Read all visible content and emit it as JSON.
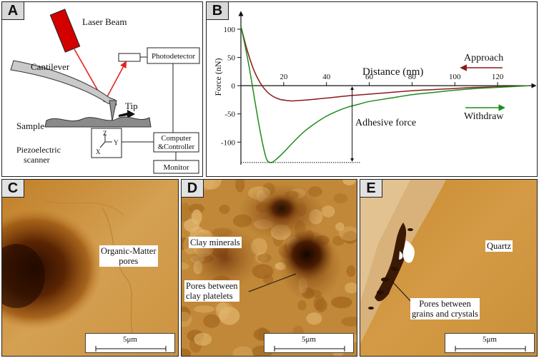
{
  "panels": {
    "a": {
      "label": "A"
    },
    "b": {
      "label": "B"
    },
    "c": {
      "label": "C"
    },
    "d": {
      "label": "D"
    },
    "e": {
      "label": "E"
    }
  },
  "schematic": {
    "laser_beam": "Laser Beam",
    "photodetector": "Photodetector",
    "cantilever": "Cantilever",
    "tip": "Tip",
    "sample": "Sample",
    "piezo_line1": "Piezoelectric",
    "piezo_line2": "scanner",
    "computer_line1": "Computer",
    "computer_line2": "&Controller",
    "monitor": "Monitor",
    "axis_z": "Z",
    "axis_y": "Y",
    "axis_x": "X",
    "colors": {
      "laser_body": "#d40000",
      "laser_ray": "#e8201e",
      "motion_arrow": "#111111"
    }
  },
  "chart_data": {
    "type": "line",
    "xlabel": "Distance (nm)",
    "ylabel": "Force (nN)",
    "xlim": [
      0,
      135
    ],
    "ylim": [
      -140,
      110
    ],
    "x_ticks": [
      20,
      40,
      60,
      80,
      100,
      120
    ],
    "y_ticks": [
      100,
      50,
      0,
      -50,
      -100
    ],
    "annotation": "Adhesive force",
    "series": [
      {
        "name": "Approach",
        "color": "#8b1a1a",
        "direction": "left",
        "x": [
          0,
          3,
          6,
          9,
          12,
          15,
          18,
          21,
          24,
          28,
          32,
          40,
          50,
          60,
          70,
          80,
          90,
          100,
          110,
          120,
          135
        ],
        "y": [
          105,
          62,
          28,
          5,
          -10,
          -19,
          -24,
          -26,
          -27,
          -26,
          -25,
          -22,
          -18,
          -15,
          -12,
          -9,
          -7,
          -5,
          -3,
          -2,
          0
        ]
      },
      {
        "name": "Withdraw",
        "color": "#1e8c1e",
        "direction": "right",
        "x": [
          0,
          2,
          4,
          6,
          8,
          10,
          12,
          14,
          16,
          20,
          25,
          30,
          35,
          40,
          45,
          50,
          55,
          60,
          70,
          80,
          90,
          100,
          110,
          120,
          135
        ],
        "y": [
          105,
          70,
          30,
          -15,
          -60,
          -100,
          -130,
          -136,
          -132,
          -118,
          -98,
          -80,
          -66,
          -54,
          -45,
          -38,
          -33,
          -28,
          -22,
          -16,
          -12,
          -8,
          -5,
          -3,
          0
        ]
      }
    ]
  },
  "images": {
    "c": {
      "caption_line1": "Organic-Matter",
      "caption_line2": "pores",
      "scale": "5μm"
    },
    "d": {
      "caption1": "Clay minerals",
      "caption2_line1": "Pores between",
      "caption2_line2": "clay platelets",
      "scale": "5μm"
    },
    "e": {
      "caption1": "Quartz",
      "caption2_line1": "Pores between",
      "caption2_line2": "grains and crystals",
      "scale": "5μm"
    }
  }
}
